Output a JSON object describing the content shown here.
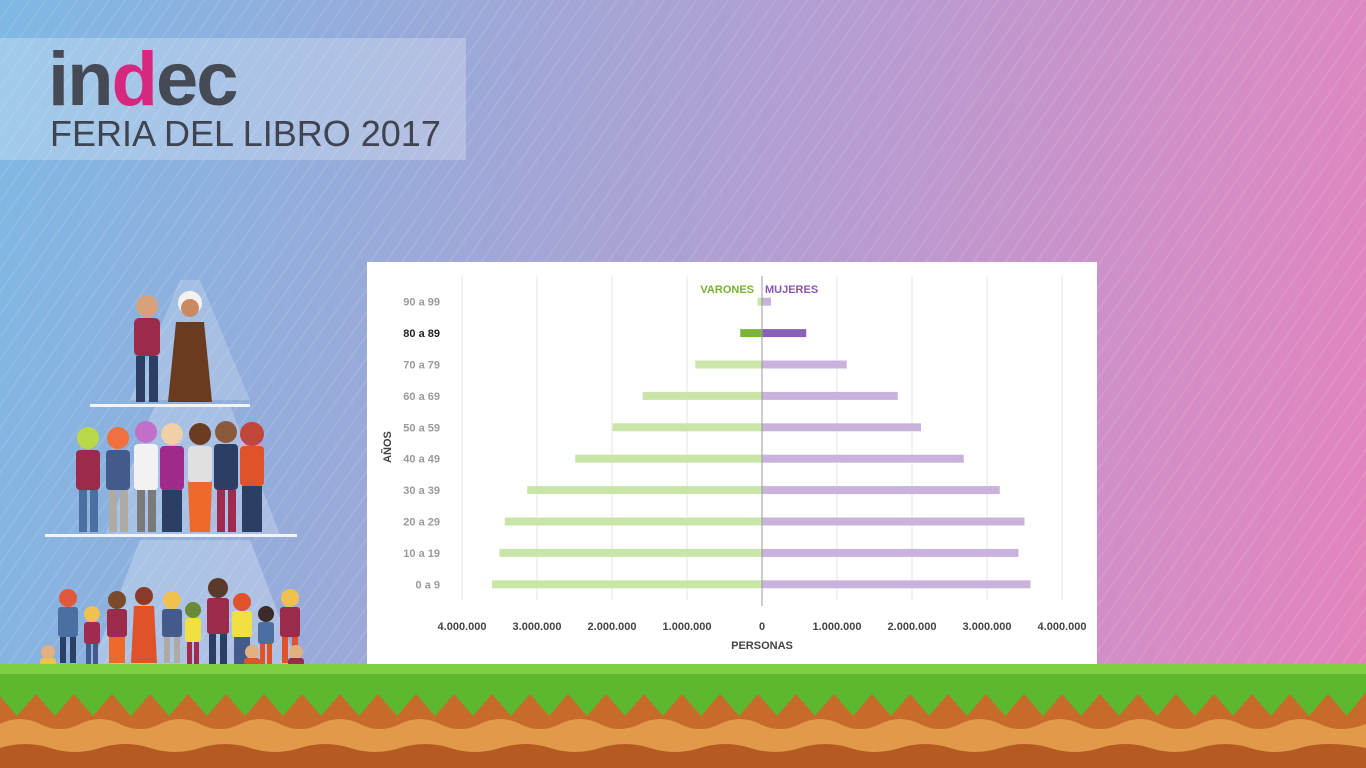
{
  "brand": {
    "logo_prefix": "in",
    "logo_d": "d",
    "logo_suffix": "ec",
    "subtitle": "FERIA DEL LIBRO 2017"
  },
  "colors": {
    "varones": "#c9e5a8",
    "varones_highlight": "#7ab43a",
    "mujeres": "#c9b3dc",
    "mujeres_highlight": "#8b5fb5",
    "varones_text": "#79b22e",
    "mujeres_text": "#8a56b2"
  },
  "chart_data": {
    "type": "bar",
    "orientation": "horizontal-population-pyramid",
    "categories": [
      "0 a 9",
      "10 a 19",
      "20 a 29",
      "30 a 39",
      "40 a 49",
      "50 a 59",
      "60 a 69",
      "70 a 79",
      "80 a 89",
      "90 a 99"
    ],
    "highlight_category": "80 a 89",
    "series": [
      {
        "name": "VARONES",
        "side": "left",
        "values": [
          3600000,
          3500000,
          3430000,
          3130000,
          2490000,
          1990000,
          1590000,
          890000,
          290000,
          60000
        ]
      },
      {
        "name": "MUJERES",
        "side": "right",
        "values": [
          3580000,
          3420000,
          3500000,
          3170000,
          2690000,
          2120000,
          1810000,
          1130000,
          590000,
          120000
        ]
      }
    ],
    "xlabel": "PERSONAS",
    "ylabel": "AÑOS",
    "xlim": [
      -4000000,
      4000000
    ],
    "x_ticks": [
      -4000000,
      -3000000,
      -2000000,
      -1000000,
      0,
      1000000,
      2000000,
      3000000,
      4000000
    ],
    "x_tick_labels": [
      "4.000.000",
      "3.000.000",
      "2.000.000",
      "1.000.000",
      "0",
      "1.000.000",
      "2.000.000",
      "3.000.000",
      "4.000.000"
    ],
    "grid": true,
    "legend": "top-center"
  }
}
